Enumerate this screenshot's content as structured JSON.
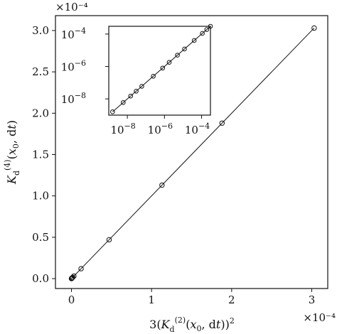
{
  "chart_data": [
    {
      "type": "scatter",
      "title": "",
      "xlabel": "3(K_d^(2)(x0, dt))^2",
      "ylabel": "K_d^(4)(x0, dt)",
      "x_scale_factor": "×10⁻⁴",
      "y_scale_factor": "×10⁻⁴",
      "xlim": [
        -0.2,
        3.2
      ],
      "ylim": [
        -0.12,
        3.18
      ],
      "x_ticks": [
        0,
        1,
        2,
        3
      ],
      "x_tick_labels": [
        "0",
        "1",
        "2",
        "3"
      ],
      "y_ticks": [
        0.0,
        0.5,
        1.0,
        1.5,
        2.0,
        2.5,
        3.0
      ],
      "y_tick_labels": [
        "0.0",
        "0.5",
        "1.0",
        "1.5",
        "2.0",
        "2.5",
        "3.0"
      ],
      "grid": false,
      "line": {
        "x": [
          0,
          3.03
        ],
        "y": [
          0,
          3.03
        ]
      },
      "series": [
        {
          "values_x": [
            0.0,
            0.002,
            0.004,
            0.008,
            0.015,
            0.03,
            0.12,
            0.47,
            1.13,
            1.88,
            3.03
          ],
          "values_y": [
            0.0,
            0.002,
            0.004,
            0.008,
            0.015,
            0.03,
            0.12,
            0.47,
            1.13,
            1.88,
            3.03
          ]
        }
      ]
    },
    {
      "type": "scatter",
      "title": "",
      "xlabel": "",
      "ylabel": "",
      "x_scale": "log",
      "y_scale": "log",
      "xlim": [
        1e-09,
        0.0003
      ],
      "ylim": [
        1e-09,
        0.0003
      ],
      "x_ticks": [
        1e-08,
        1e-06,
        0.0001
      ],
      "x_tick_labels": [
        {
          "base": "10",
          "exp": "−8"
        },
        {
          "base": "10",
          "exp": "−6"
        },
        {
          "base": "10",
          "exp": "−4"
        }
      ],
      "y_ticks": [
        1e-08,
        1e-06,
        0.0001
      ],
      "y_tick_labels": [
        {
          "base": "10",
          "exp": "−8"
        },
        {
          "base": "10",
          "exp": "−6"
        },
        {
          "base": "10",
          "exp": "−4"
        }
      ],
      "line": {
        "x": [
          1.6e-09,
          0.00029
        ],
        "y": [
          1.6e-09,
          0.00029
        ]
      },
      "series": [
        {
          "values_x": [
            1.6e-09,
            6e-09,
            1.5e-08,
            3e-08,
            6e-08,
            2.5e-07,
            8e-07,
            1.8e-06,
            5e-06,
            1.2e-05,
            4e-05,
            0.00011,
            0.00019,
            0.0003
          ],
          "values_y": [
            1.6e-09,
            6e-09,
            1.5e-08,
            3e-08,
            6e-08,
            2.5e-07,
            8e-07,
            1.8e-06,
            5e-06,
            1.2e-05,
            4e-05,
            0.00011,
            0.00019,
            0.0003
          ]
        }
      ]
    }
  ]
}
